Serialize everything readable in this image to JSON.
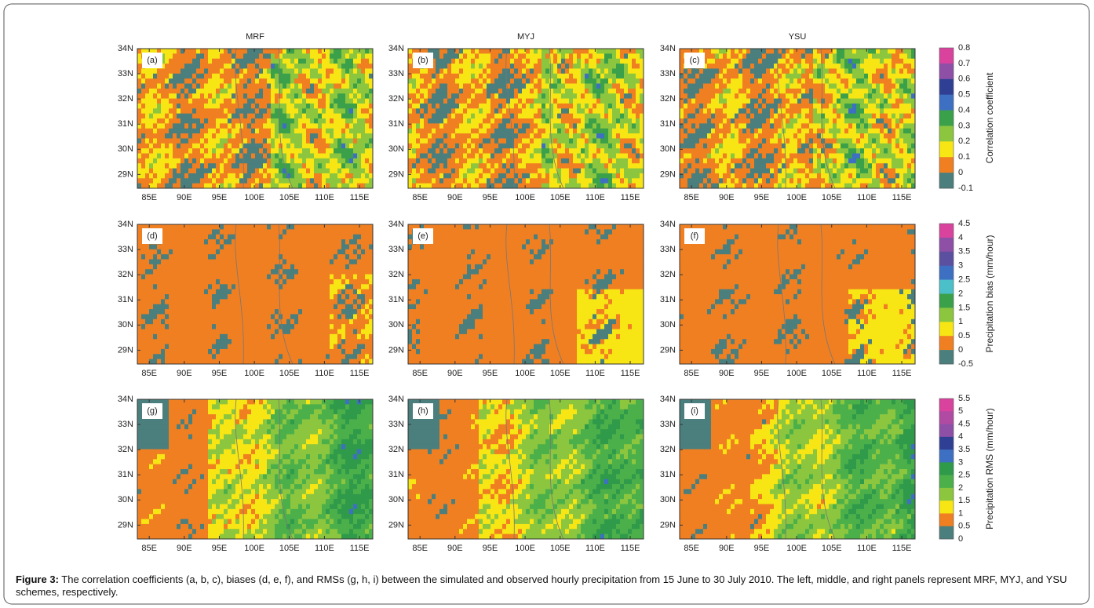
{
  "columns": [
    "MRF",
    "MYJ",
    "YSU"
  ],
  "panel_labels": [
    "(a)",
    "(b)",
    "(c)",
    "(d)",
    "(e)",
    "(f)",
    "(g)",
    "(h)",
    "(i)"
  ],
  "lat_ticks": [
    "34N",
    "33N",
    "32N",
    "31N",
    "30N",
    "29N"
  ],
  "lon_ticks": [
    "85E",
    "90E",
    "95E",
    "100E",
    "105E",
    "110E",
    "115E"
  ],
  "colorbars": [
    {
      "title": "Correlation coefficient",
      "ticks": [
        "0.8",
        "0.7",
        "0.6",
        "0.5",
        "0.4",
        "0.3",
        "0.2",
        "0.1",
        "0",
        "-0.1"
      ],
      "colors": [
        "#d9439e",
        "#8e4fa6",
        "#2f3f94",
        "#3d70c2",
        "#3aa04a",
        "#8cc63f",
        "#f7e614",
        "#f07f22",
        "#4a7f7d"
      ]
    },
    {
      "title": "Precipitation bias (mm/hour)",
      "ticks": [
        "4.5",
        "4",
        "3.5",
        "3",
        "2.5",
        "2",
        "1.5",
        "1",
        "0.5",
        "0",
        "-0.5"
      ],
      "colors": [
        "#d9439e",
        "#8e4fa6",
        "#5b4fa0",
        "#3d70c2",
        "#4cc0c8",
        "#3aa04a",
        "#8cc63f",
        "#f7e614",
        "#f07f22",
        "#4a7f7d"
      ]
    },
    {
      "title": "Precipitation RMS (mm/hour)",
      "ticks": [
        "5.5",
        "5",
        "4.5",
        "4",
        "3.5",
        "3",
        "2.5",
        "2",
        "1.5",
        "1",
        "0.5",
        "0"
      ],
      "colors": [
        "#d9439e",
        "#b04aa2",
        "#8e4fa6",
        "#2f3f94",
        "#3d70c2",
        "#2f9a4a",
        "#4cb04a",
        "#8cc63f",
        "#f7e614",
        "#f07f22",
        "#4a7f7d"
      ]
    }
  ],
  "caption": {
    "label": "Figure 3:",
    "text": "The correlation coefficients (a, b, c), biases (d, e, f), and RMSs (g, h, i) between the simulated and observed hourly precipitation from 15 June to 30 July 2010. The left, middle, and right panels represent MRF, MYJ, and YSU schemes, respectively."
  }
}
